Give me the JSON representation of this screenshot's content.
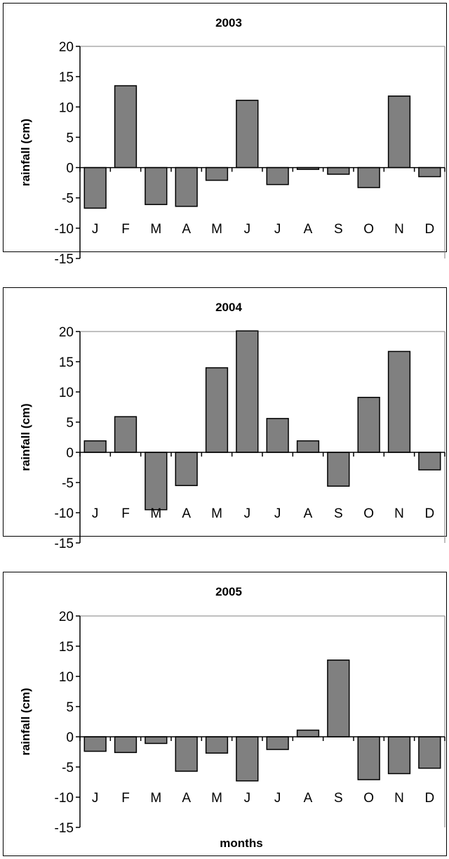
{
  "chart_data": [
    {
      "type": "bar",
      "title": "2003",
      "ylabel": "rainfall (cm)",
      "xlabel": "",
      "ylim": [
        -15,
        20
      ],
      "yticks": [
        20,
        15,
        10,
        5,
        0,
        -5,
        -10,
        -15
      ],
      "categories": [
        "J",
        "F",
        "M",
        "A",
        "M",
        "J",
        "J",
        "A",
        "S",
        "O",
        "N",
        "D"
      ],
      "values": [
        -6.7,
        13.5,
        -6.1,
        -6.4,
        -2.1,
        11.1,
        -2.8,
        -0.3,
        -1.1,
        -3.3,
        11.8,
        -1.5
      ],
      "bar_color": "#808080",
      "grid": false
    },
    {
      "type": "bar",
      "title": "2004",
      "ylabel": "rainfall (cm)",
      "xlabel": "",
      "ylim": [
        -15,
        20
      ],
      "yticks": [
        20,
        15,
        10,
        5,
        0,
        -5,
        -10,
        -15
      ],
      "categories": [
        "J",
        "F",
        "M",
        "A",
        "M",
        "J",
        "J",
        "A",
        "S",
        "O",
        "N",
        "D"
      ],
      "values": [
        1.9,
        5.9,
        -9.5,
        -5.5,
        14.0,
        20.1,
        5.6,
        1.9,
        -5.6,
        9.1,
        16.7,
        -2.9
      ],
      "bar_color": "#808080",
      "grid": false
    },
    {
      "type": "bar",
      "title": "2005",
      "ylabel": "rainfall (cm)",
      "xlabel": "months",
      "ylim": [
        -15,
        20
      ],
      "yticks": [
        20,
        15,
        10,
        5,
        0,
        -5,
        -10,
        -15
      ],
      "categories": [
        "J",
        "F",
        "M",
        "A",
        "M",
        "J",
        "J",
        "A",
        "S",
        "O",
        "N",
        "D"
      ],
      "values": [
        -2.4,
        -2.6,
        -1.1,
        -5.7,
        -2.7,
        -7.3,
        -2.1,
        1.1,
        12.7,
        -7.1,
        -6.1,
        -5.2
      ],
      "bar_color": "#808080",
      "grid": false
    }
  ]
}
